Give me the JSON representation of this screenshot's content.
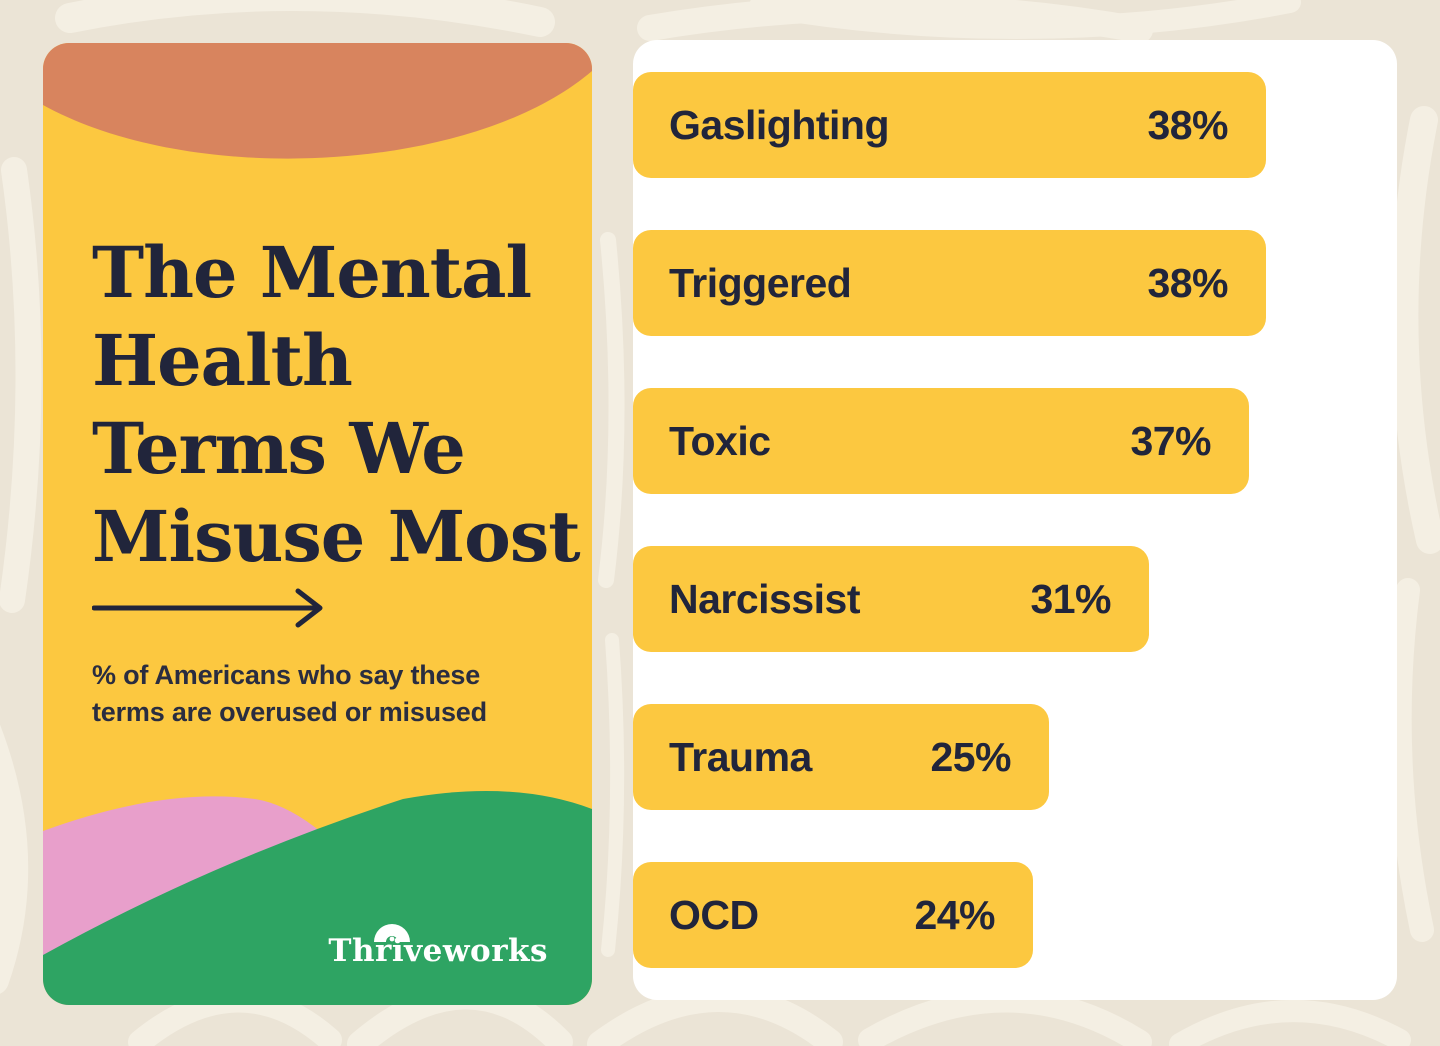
{
  "palette": {
    "background": "#EBE4D6",
    "pattern_stroke": "#F4EFE3",
    "card_yellow": "#FCC840",
    "orange_arc": "#D8845E",
    "pink_hill": "#E89FCB",
    "green_hill": "#2EA463",
    "ink": "#21253B",
    "panel_white": "#FFFFFF",
    "logo_white": "#FFFFFF"
  },
  "left_panel": {
    "title_lines": [
      "The Mental",
      "Health",
      "Terms We",
      "Misuse Most"
    ],
    "subtitle_lines": [
      "% of Americans who say these",
      "terms are overused or misused"
    ],
    "logo_text": "Thriveworks",
    "arrow_icon": "right-arrow"
  },
  "chart_data": {
    "type": "bar",
    "orientation": "horizontal",
    "title": "The Mental Health Terms We Misuse Most",
    "subtitle": "% of Americans who say these terms are overused or misused",
    "categories": [
      "Gaslighting",
      "Triggered",
      "Toxic",
      "Narcissist",
      "Trauma",
      "OCD"
    ],
    "values": [
      38,
      38,
      37,
      31,
      25,
      24
    ],
    "value_suffix": "%",
    "value_labels": [
      "38%",
      "38%",
      "37%",
      "31%",
      "25%",
      "24%"
    ],
    "bar_color": "#FCC840",
    "label_color": "#21253B",
    "axis": "none",
    "grid": "off",
    "legend": "none",
    "source_brand": "Thriveworks"
  }
}
